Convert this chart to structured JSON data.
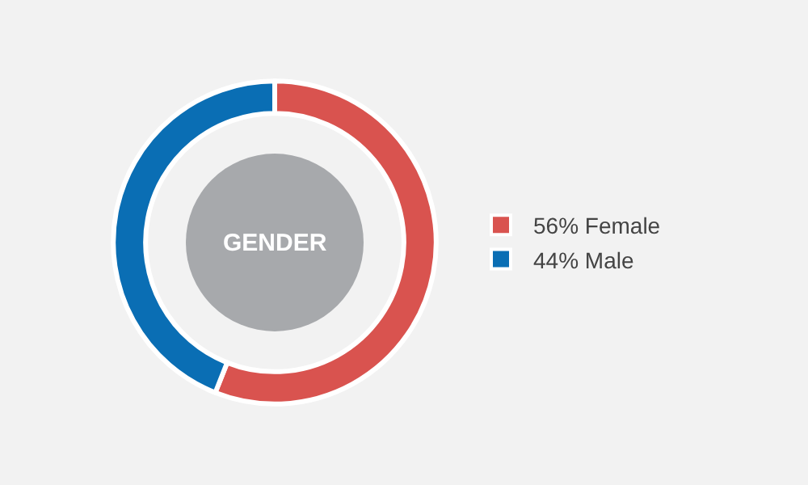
{
  "chart_data": {
    "type": "donut",
    "title": "GENDER",
    "categories": [
      "56% Female",
      "44% Male"
    ],
    "values": [
      56,
      44
    ],
    "colors": [
      "#d9534f",
      "#0a6eb4"
    ],
    "legend": "right"
  }
}
